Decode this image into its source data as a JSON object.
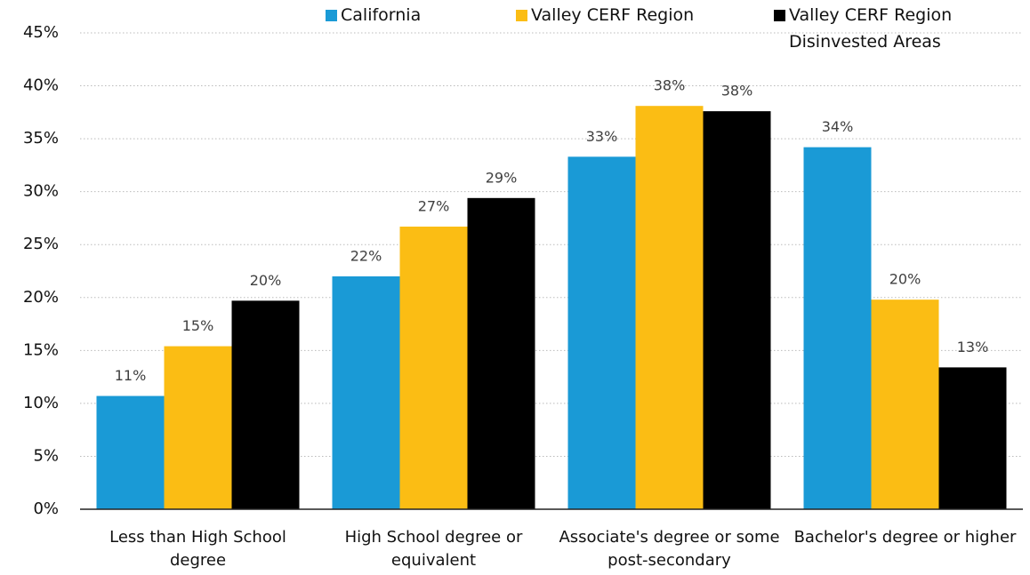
{
  "chart_data": {
    "type": "bar",
    "categories": [
      "Less than High School degree",
      "High School degree or equivalent",
      "Associate's degree or some post-secondary",
      "Bachelor's degree or higher"
    ],
    "series": [
      {
        "name": "California",
        "color": "#1a9ad6",
        "values": [
          10.7,
          22.0,
          33.3,
          34.2
        ],
        "value_labels": [
          "11%",
          "22%",
          "33%",
          "34%"
        ]
      },
      {
        "name": "Valley CERF Region",
        "color": "#fbbd14",
        "values": [
          15.4,
          26.7,
          38.1,
          19.8
        ],
        "value_labels": [
          "15%",
          "27%",
          "38%",
          "20%"
        ]
      },
      {
        "name": "Valley CERF Region Disinvested Areas",
        "color": "#000000",
        "values": [
          19.7,
          29.4,
          37.6,
          13.4
        ],
        "value_labels": [
          "20%",
          "29%",
          "38%",
          "13%"
        ]
      }
    ],
    "ylim": [
      0,
      45
    ],
    "yticks": [
      {
        "value": 0,
        "label": "0%"
      },
      {
        "value": 5,
        "label": "5%"
      },
      {
        "value": 10,
        "label": "10%"
      },
      {
        "value": 15,
        "label": "15%"
      },
      {
        "value": 20,
        "label": "20%"
      },
      {
        "value": 25,
        "label": "25%"
      },
      {
        "value": 30,
        "label": "30%"
      },
      {
        "value": 35,
        "label": "35%"
      },
      {
        "value": 40,
        "label": "40%"
      },
      {
        "value": 45,
        "label": "45%"
      }
    ],
    "grid": true,
    "legend": "top"
  }
}
